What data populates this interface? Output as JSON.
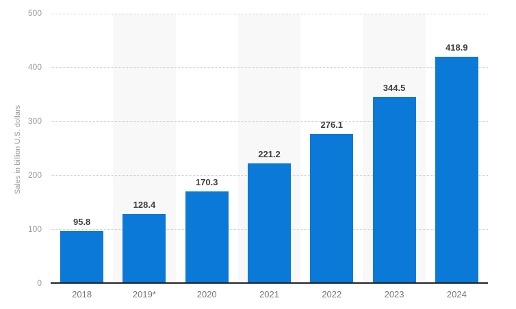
{
  "colors": {
    "bar_blue": "#0a79d8",
    "stripe_band": "#f8f8f8",
    "gridline": "#c8c8c8",
    "axis_line": "#222222",
    "value_label": "#3f3f3f",
    "x_tick_label": "#757575",
    "y_tick_label": "#9a9a9a",
    "y_axis_title": "#9a9a9a",
    "background": "#ffffff"
  },
  "chart_data": {
    "type": "bar",
    "categories": [
      "2018",
      "2019*",
      "2020",
      "2021",
      "2022",
      "2023",
      "2024"
    ],
    "values": [
      95.8,
      128.4,
      170.3,
      221.2,
      276.1,
      344.5,
      418.9
    ],
    "value_labels": [
      "95.8",
      "128.4",
      "170.3",
      "221.2",
      "276.1",
      "344.5",
      "418.9"
    ],
    "title": "",
    "xlabel": "",
    "ylabel": "Sales in billion U.S. dollars",
    "ylim": [
      0,
      500
    ],
    "yticks": [
      0,
      100,
      200,
      300,
      400,
      500
    ],
    "ytick_labels": [
      "0",
      "100",
      "200",
      "300",
      "400",
      "500"
    ],
    "grid": "horizontal-dotted",
    "legend": "none",
    "striped_column_indices": [
      1,
      3,
      5
    ]
  }
}
